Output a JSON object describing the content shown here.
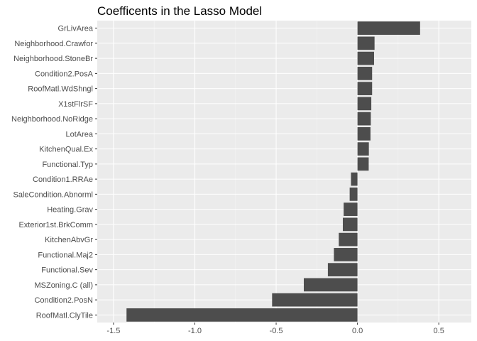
{
  "chart_data": {
    "type": "bar",
    "orientation": "horizontal",
    "title": "Coefficents in the Lasso Model",
    "xlabel": "",
    "ylabel": "",
    "categories": [
      "GrLivArea",
      "Neighborhood.Crawfor",
      "Neighborhood.StoneBr",
      "Condition2.PosA",
      "RoofMatl.WdShngl",
      "X1stFlrSF",
      "Neighborhood.NoRidge",
      "LotArea",
      "KitchenQual.Ex",
      "Functional.Typ",
      "Condition1.RRAe",
      "SaleCondition.Abnorml",
      "Heating.Grav",
      "Exterior1st.BrkComm",
      "KitchenAbvGr",
      "Functional.Maj2",
      "Functional.Sev",
      "MSZoning.C (all)",
      "Condition2.PosN",
      "RoofMatl.ClyTile"
    ],
    "values": [
      0.385,
      0.105,
      0.102,
      0.09,
      0.09,
      0.085,
      0.082,
      0.08,
      0.07,
      0.069,
      -0.04,
      -0.048,
      -0.085,
      -0.09,
      -0.115,
      -0.145,
      -0.182,
      -0.33,
      -0.525,
      -1.42
    ],
    "xlim": [
      -1.6,
      0.7
    ],
    "xticks": [
      -1.5,
      -1.0,
      -0.5,
      0.0,
      0.5
    ],
    "xtick_labels": [
      "-1.5",
      "-1.0",
      "-0.5",
      "0.0",
      "0.5"
    ],
    "grid": true,
    "colors": {
      "bar": "#4d4d4d",
      "panel": "#ebebeb",
      "grid_major": "#ffffff",
      "grid_minor": "#f5f5f5"
    }
  }
}
